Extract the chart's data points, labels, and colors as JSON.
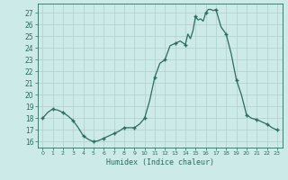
{
  "x": [
    0,
    0.5,
    1,
    1.5,
    2,
    2.5,
    3,
    3.5,
    4,
    4.5,
    5,
    5.5,
    6,
    6.5,
    7,
    7.5,
    8,
    8.5,
    9,
    9.5,
    10,
    10.5,
    11,
    11.5,
    12,
    12.5,
    13,
    13.5,
    14,
    14.25,
    14.5,
    14.75,
    15,
    15.25,
    15.5,
    15.75,
    16,
    16.25,
    16.5,
    16.75,
    17,
    17.5,
    18,
    18.5,
    19,
    19.5,
    20,
    20.5,
    21,
    21.5,
    22,
    22.5,
    23
  ],
  "y": [
    18.0,
    18.5,
    18.8,
    18.7,
    18.5,
    18.2,
    17.8,
    17.2,
    16.5,
    16.2,
    16.0,
    16.1,
    16.3,
    16.5,
    16.7,
    16.9,
    17.2,
    17.2,
    17.2,
    17.5,
    18.0,
    19.5,
    21.5,
    22.7,
    23.0,
    24.2,
    24.4,
    24.6,
    24.3,
    25.2,
    24.8,
    25.5,
    26.7,
    26.4,
    26.5,
    26.3,
    27.0,
    27.3,
    27.3,
    27.2,
    27.3,
    25.8,
    25.2,
    23.5,
    21.3,
    20.0,
    18.3,
    18.0,
    17.9,
    17.7,
    17.5,
    17.2,
    17.0
  ],
  "x_markers": [
    0,
    1,
    2,
    3,
    4,
    5,
    6,
    7,
    8,
    9,
    10,
    11,
    12,
    13,
    14,
    15,
    16,
    17,
    18,
    19,
    20,
    21,
    22,
    23
  ],
  "y_markers": [
    18.0,
    18.8,
    18.5,
    17.8,
    16.5,
    16.0,
    16.3,
    16.7,
    17.2,
    17.2,
    18.0,
    21.5,
    23.0,
    24.4,
    24.3,
    26.7,
    27.0,
    27.3,
    25.2,
    21.3,
    18.3,
    17.9,
    17.5,
    17.0
  ],
  "xlabel": "Humidex (Indice chaleur)",
  "ylim": [
    15.5,
    27.8
  ],
  "xlim": [
    -0.5,
    23.5
  ],
  "yticks": [
    16,
    17,
    18,
    19,
    20,
    21,
    22,
    23,
    24,
    25,
    26,
    27
  ],
  "xticks": [
    0,
    1,
    2,
    3,
    4,
    5,
    6,
    7,
    8,
    9,
    10,
    11,
    12,
    13,
    14,
    15,
    16,
    17,
    18,
    19,
    20,
    21,
    22,
    23
  ],
  "line_color": "#2d6b5e",
  "bg_color": "#cceae8",
  "grid_color": "#b0d0cc",
  "marker": "+",
  "marker_size": 3.5,
  "line_width": 0.9
}
